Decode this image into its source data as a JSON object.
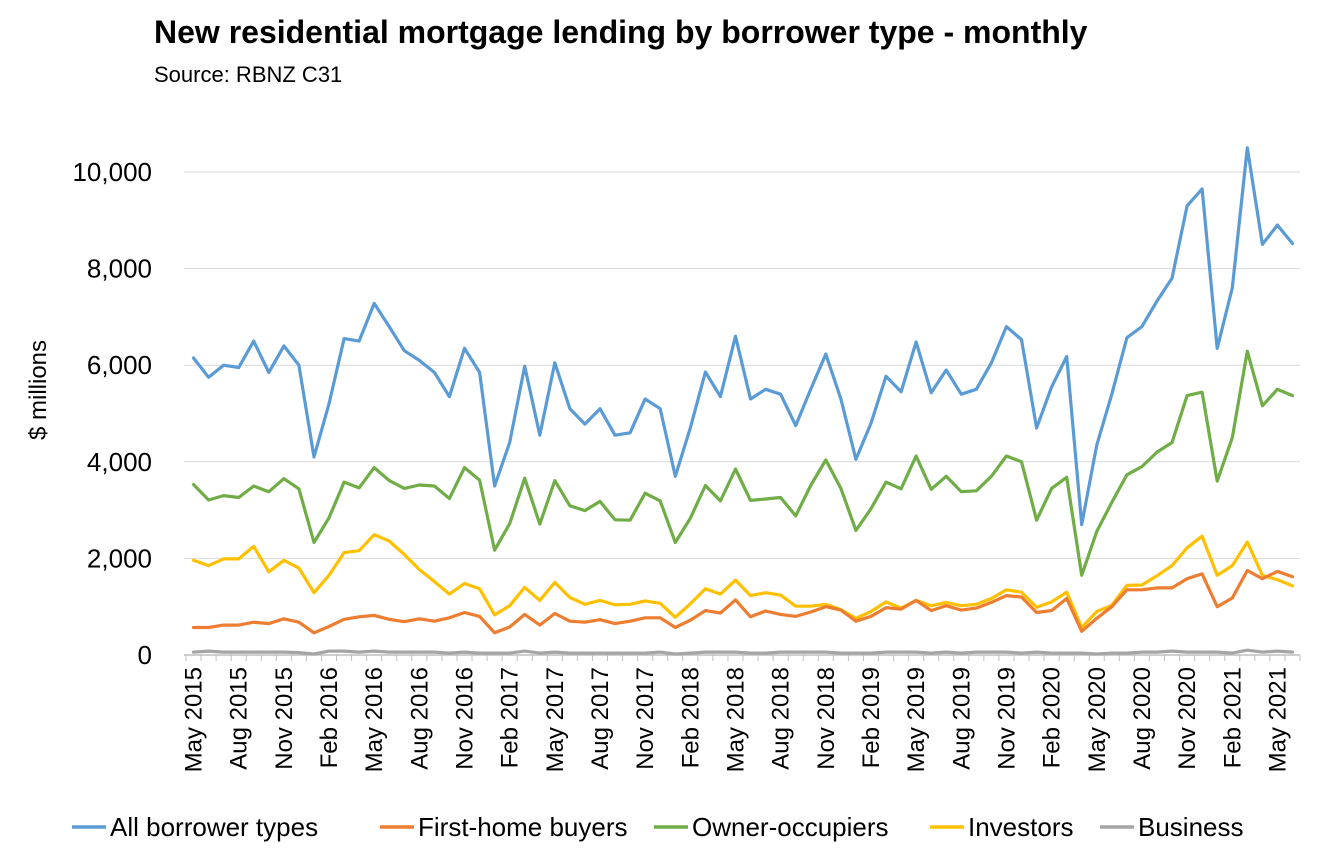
{
  "chart_data": {
    "type": "line",
    "title": "New residential mortgage lending by borrower type - monthly",
    "subtitle": "Source: RBNZ C31",
    "xlabel": "",
    "ylabel": "$ millions",
    "ylim": [
      0,
      10000
    ],
    "yticks": [
      "0",
      "2,000",
      "4,000",
      "6,000",
      "8,000",
      "10,000"
    ],
    "ytick_values": [
      0,
      2000,
      4000,
      6000,
      8000,
      10000
    ],
    "grid": true,
    "legend_position": "bottom",
    "x": [
      "May 2015",
      "Jun 2015",
      "Jul 2015",
      "Aug 2015",
      "Sep 2015",
      "Oct 2015",
      "Nov 2015",
      "Dec 2015",
      "Jan 2016",
      "Feb 2016",
      "Mar 2016",
      "Apr 2016",
      "May 2016",
      "Jun 2016",
      "Jul 2016",
      "Aug 2016",
      "Sep 2016",
      "Oct 2016",
      "Nov 2016",
      "Dec 2016",
      "Jan 2017",
      "Feb 2017",
      "Mar 2017",
      "Apr 2017",
      "May 2017",
      "Jun 2017",
      "Jul 2017",
      "Aug 2017",
      "Sep 2017",
      "Oct 2017",
      "Nov 2017",
      "Dec 2017",
      "Jan 2018",
      "Feb 2018",
      "Mar 2018",
      "Apr 2018",
      "May 2018",
      "Jun 2018",
      "Jul 2018",
      "Aug 2018",
      "Sep 2018",
      "Oct 2018",
      "Nov 2018",
      "Dec 2018",
      "Jan 2019",
      "Feb 2019",
      "Mar 2019",
      "Apr 2019",
      "May 2019",
      "Jun 2019",
      "Jul 2019",
      "Aug 2019",
      "Sep 2019",
      "Oct 2019",
      "Nov 2019",
      "Dec 2019",
      "Jan 2020",
      "Feb 2020",
      "Mar 2020",
      "Apr 2020",
      "May 2020",
      "Jun 2020",
      "Jul 2020",
      "Aug 2020",
      "Sep 2020",
      "Oct 2020",
      "Nov 2020",
      "Dec 2020",
      "Jan 2021",
      "Feb 2021",
      "Mar 2021",
      "Apr 2021",
      "May 2021",
      "Jun 2021"
    ],
    "x_tick_labels": [
      "May 2015",
      "Aug 2015",
      "Nov 2015",
      "Feb 2016",
      "May 2016",
      "Aug 2016",
      "Nov 2016",
      "Feb 2017",
      "May 2017",
      "Aug 2017",
      "Nov 2017",
      "Feb 2018",
      "May 2018",
      "Aug 2018",
      "Nov 2018",
      "Feb 2019",
      "May 2019",
      "Aug 2019",
      "Nov 2019",
      "Feb 2020",
      "May 2020",
      "Aug 2020",
      "Nov 2020",
      "Feb 2021",
      "May 2021"
    ],
    "series": [
      {
        "name": "All borrower types",
        "color": "#5B9BD5",
        "values": [
          6150,
          5750,
          6000,
          5950,
          6500,
          5850,
          6400,
          6000,
          4100,
          5200,
          6550,
          6500,
          7280,
          6800,
          6300,
          6100,
          5850,
          5350,
          6350,
          5850,
          3500,
          4400,
          5980,
          4550,
          6050,
          5100,
          4780,
          5100,
          4550,
          4600,
          5300,
          5100,
          3700,
          4700,
          5860,
          5350,
          6600,
          5300,
          5500,
          5400,
          4750,
          5500,
          6230,
          5300,
          4050,
          4800,
          5770,
          5450,
          6480,
          5430,
          5900,
          5400,
          5500,
          6050,
          6800,
          6530,
          4700,
          5550,
          6180,
          2700,
          4350,
          5400,
          6570,
          6800,
          7330,
          7800,
          9300,
          9650,
          6350,
          7600,
          10500,
          8500,
          8900,
          8520
        ]
      },
      {
        "name": "First-home buyers",
        "color": "#ED7D31",
        "values": [
          570,
          570,
          620,
          620,
          680,
          650,
          750,
          680,
          460,
          590,
          740,
          790,
          820,
          740,
          690,
          750,
          700,
          770,
          880,
          800,
          460,
          580,
          840,
          620,
          860,
          700,
          680,
          730,
          650,
          700,
          770,
          770,
          570,
          720,
          920,
          870,
          1140,
          790,
          910,
          840,
          800,
          890,
          1000,
          930,
          700,
          800,
          980,
          950,
          1130,
          920,
          1020,
          930,
          970,
          1090,
          1230,
          1200,
          880,
          920,
          1170,
          490,
          760,
          1000,
          1350,
          1350,
          1390,
          1390,
          1580,
          1680,
          1000,
          1180,
          1750,
          1580,
          1730,
          1620
        ]
      },
      {
        "name": "Owner-occupiers",
        "color": "#70AD47",
        "values": [
          3530,
          3210,
          3300,
          3260,
          3500,
          3380,
          3650,
          3440,
          2330,
          2840,
          3580,
          3460,
          3880,
          3610,
          3450,
          3520,
          3500,
          3240,
          3880,
          3620,
          2170,
          2720,
          3660,
          2710,
          3610,
          3090,
          2990,
          3180,
          2800,
          2790,
          3350,
          3190,
          2330,
          2830,
          3510,
          3190,
          3850,
          3200,
          3230,
          3260,
          2880,
          3510,
          4040,
          3450,
          2580,
          3030,
          3580,
          3440,
          4120,
          3430,
          3700,
          3380,
          3400,
          3700,
          4120,
          4000,
          2790,
          3450,
          3680,
          1650,
          2560,
          3160,
          3730,
          3900,
          4200,
          4400,
          5370,
          5440,
          3600,
          4500,
          6290,
          5160,
          5500,
          5370
        ]
      },
      {
        "name": "Investors",
        "color": "#FFC000",
        "values": [
          1960,
          1850,
          1990,
          1990,
          2250,
          1720,
          1960,
          1800,
          1290,
          1650,
          2120,
          2160,
          2490,
          2360,
          2080,
          1770,
          1520,
          1260,
          1480,
          1370,
          830,
          1020,
          1400,
          1130,
          1500,
          1190,
          1050,
          1130,
          1040,
          1050,
          1120,
          1070,
          780,
          1060,
          1370,
          1260,
          1550,
          1230,
          1290,
          1240,
          1010,
          1010,
          1050,
          940,
          760,
          900,
          1100,
          970,
          1130,
          1020,
          1090,
          1020,
          1050,
          1170,
          1350,
          1300,
          990,
          1100,
          1300,
          570,
          900,
          1030,
          1440,
          1450,
          1640,
          1850,
          2220,
          2460,
          1650,
          1850,
          2340,
          1650,
          1560,
          1430
        ]
      },
      {
        "name": "Business",
        "color": "#A5A5A5",
        "values": [
          60,
          80,
          60,
          60,
          60,
          60,
          60,
          50,
          20,
          80,
          80,
          60,
          80,
          60,
          60,
          60,
          60,
          40,
          60,
          40,
          40,
          40,
          80,
          40,
          60,
          40,
          40,
          40,
          40,
          40,
          40,
          60,
          20,
          40,
          60,
          60,
          60,
          40,
          40,
          60,
          60,
          60,
          60,
          40,
          40,
          40,
          60,
          60,
          60,
          40,
          60,
          40,
          60,
          60,
          60,
          40,
          60,
          40,
          40,
          40,
          20,
          40,
          40,
          60,
          60,
          80,
          60,
          60,
          60,
          40,
          100,
          60,
          80,
          60
        ]
      }
    ]
  }
}
